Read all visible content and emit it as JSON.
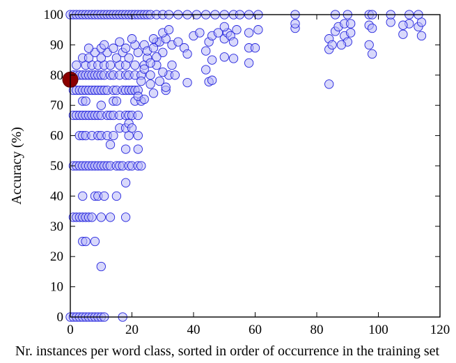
{
  "chart_data": {
    "type": "scatter",
    "xlabel": "Nr. instances per word class, sorted in order of occurrence in the training set",
    "ylabel": "Accuracy (%)",
    "xlim": [
      0,
      120
    ],
    "ylim": [
      0,
      100
    ],
    "x_ticks": [
      "0",
      "20",
      "40",
      "60",
      "80",
      "100",
      "120"
    ],
    "y_ticks": [
      "0",
      "10",
      "20",
      "30",
      "40",
      "50",
      "60",
      "70",
      "80",
      "90",
      "100"
    ],
    "grid": false,
    "legend": "none",
    "colors": {
      "point_fill": "#b8b8f8",
      "point_stroke": "#2222dd",
      "highlight_fill": "#8b0000",
      "highlight_stroke": "#5a0000"
    },
    "highlight_point": {
      "x": 0,
      "y": 78.5
    },
    "series": [
      {
        "values": [
          [
            0,
            0
          ],
          [
            1,
            0
          ],
          [
            2,
            0
          ],
          [
            3,
            0
          ],
          [
            4,
            0
          ],
          [
            5,
            0
          ],
          [
            6,
            0
          ],
          [
            7,
            0
          ],
          [
            8,
            0
          ],
          [
            9,
            0
          ],
          [
            10,
            0
          ],
          [
            11,
            0
          ],
          [
            17,
            0
          ],
          [
            1,
            33
          ],
          [
            2,
            33
          ],
          [
            3,
            33
          ],
          [
            4,
            33
          ],
          [
            5,
            33
          ],
          [
            6,
            33
          ],
          [
            7,
            33
          ],
          [
            10,
            33
          ],
          [
            13,
            33
          ],
          [
            18,
            33
          ],
          [
            1,
            50
          ],
          [
            2,
            50
          ],
          [
            3,
            50
          ],
          [
            4,
            50
          ],
          [
            5,
            50
          ],
          [
            6,
            50
          ],
          [
            7,
            50
          ],
          [
            8,
            50
          ],
          [
            9,
            50
          ],
          [
            10,
            50
          ],
          [
            11,
            50
          ],
          [
            12,
            50
          ],
          [
            13,
            50
          ],
          [
            15,
            50
          ],
          [
            16,
            50
          ],
          [
            17,
            50
          ],
          [
            19,
            50
          ],
          [
            20,
            50
          ],
          [
            22,
            50
          ],
          [
            23,
            50
          ],
          [
            1,
            66.7
          ],
          [
            2,
            66.7
          ],
          [
            3,
            66.7
          ],
          [
            4,
            66.7
          ],
          [
            5,
            66.7
          ],
          [
            6,
            66.7
          ],
          [
            7,
            66.7
          ],
          [
            8,
            66.7
          ],
          [
            9,
            66.7
          ],
          [
            10,
            66.7
          ],
          [
            12,
            66.7
          ],
          [
            13,
            66.7
          ],
          [
            14,
            66.7
          ],
          [
            16,
            66.7
          ],
          [
            18,
            66.7
          ],
          [
            19,
            66.7
          ],
          [
            20,
            66.7
          ],
          [
            22,
            66.7
          ],
          [
            1,
            75
          ],
          [
            2,
            75
          ],
          [
            3,
            75
          ],
          [
            4,
            75
          ],
          [
            5,
            75
          ],
          [
            6,
            75
          ],
          [
            7,
            75
          ],
          [
            8,
            75
          ],
          [
            9,
            75
          ],
          [
            10,
            75
          ],
          [
            11,
            75
          ],
          [
            12,
            75
          ],
          [
            14,
            75
          ],
          [
            15,
            75
          ],
          [
            17,
            75
          ],
          [
            18,
            75
          ],
          [
            19,
            75
          ],
          [
            20,
            75
          ],
          [
            21,
            75
          ],
          [
            22,
            75
          ],
          [
            31,
            75
          ],
          [
            1,
            80
          ],
          [
            2,
            80
          ],
          [
            3,
            80
          ],
          [
            4,
            80
          ],
          [
            5,
            80
          ],
          [
            6,
            80
          ],
          [
            7,
            80
          ],
          [
            8,
            80
          ],
          [
            9,
            80
          ],
          [
            10,
            80
          ],
          [
            11,
            80
          ],
          [
            13,
            80
          ],
          [
            14,
            80
          ],
          [
            16,
            80
          ],
          [
            18,
            80
          ],
          [
            19,
            80
          ],
          [
            21,
            80
          ],
          [
            23,
            80
          ],
          [
            26,
            80
          ],
          [
            32,
            80
          ],
          [
            34,
            80
          ],
          [
            4,
            25
          ],
          [
            5,
            25
          ],
          [
            8,
            25
          ],
          [
            4,
            40
          ],
          [
            8,
            40
          ],
          [
            9,
            40
          ],
          [
            11,
            40
          ],
          [
            15,
            40
          ],
          [
            3,
            60
          ],
          [
            4,
            60
          ],
          [
            5,
            60
          ],
          [
            7,
            60
          ],
          [
            9,
            60
          ],
          [
            10,
            60
          ],
          [
            12,
            60
          ],
          [
            14,
            60
          ],
          [
            19,
            60
          ],
          [
            22,
            60
          ],
          [
            4,
            71.4
          ],
          [
            5,
            71.4
          ],
          [
            10,
            70
          ],
          [
            14,
            71.4
          ],
          [
            15,
            71.4
          ],
          [
            21,
            71.4
          ],
          [
            23,
            71.4
          ],
          [
            2,
            83.3
          ],
          [
            5,
            83.3
          ],
          [
            7,
            83.3
          ],
          [
            9,
            83.3
          ],
          [
            11,
            83.3
          ],
          [
            13,
            83.3
          ],
          [
            16,
            83.3
          ],
          [
            18,
            83.3
          ],
          [
            21,
            83.3
          ],
          [
            24,
            83.3
          ],
          [
            28,
            83.3
          ],
          [
            33,
            83.3
          ],
          [
            4,
            85.7
          ],
          [
            6,
            85.7
          ],
          [
            8,
            87.5
          ],
          [
            10,
            85.7
          ],
          [
            12,
            87.5
          ],
          [
            15,
            85.7
          ],
          [
            17,
            87.5
          ],
          [
            19,
            85.7
          ],
          [
            22,
            87.5
          ],
          [
            25,
            85.7
          ],
          [
            30,
            87.5
          ],
          [
            6,
            88.9
          ],
          [
            10,
            88.9
          ],
          [
            14,
            88.9
          ],
          [
            18,
            88.9
          ],
          [
            21,
            90
          ],
          [
            24,
            90
          ],
          [
            28,
            90.9
          ],
          [
            11,
            90
          ],
          [
            16,
            91
          ],
          [
            20,
            92
          ],
          [
            13,
            57
          ],
          [
            16,
            62.5
          ],
          [
            18,
            62.5
          ],
          [
            19,
            64
          ],
          [
            20,
            62.5
          ],
          [
            18,
            55.5
          ],
          [
            22,
            55.5
          ],
          [
            18,
            44.4
          ],
          [
            10,
            16.7
          ],
          [
            22,
            73
          ],
          [
            24,
            72
          ],
          [
            26,
            77
          ],
          [
            27,
            74
          ],
          [
            29,
            78
          ],
          [
            30,
            81
          ],
          [
            31,
            76
          ],
          [
            24,
            82
          ],
          [
            26,
            84
          ],
          [
            28,
            86
          ],
          [
            23,
            78
          ],
          [
            25,
            88
          ],
          [
            27,
            89
          ],
          [
            29,
            91
          ],
          [
            31,
            92
          ],
          [
            33,
            90
          ],
          [
            35,
            91
          ],
          [
            37,
            89
          ],
          [
            38,
            87
          ],
          [
            40,
            93
          ],
          [
            42,
            94
          ],
          [
            38,
            77.5
          ],
          [
            44,
            81.8
          ],
          [
            45,
            77.8
          ],
          [
            46,
            78.3
          ],
          [
            44,
            88
          ],
          [
            45,
            91
          ],
          [
            46,
            93
          ],
          [
            48,
            94
          ],
          [
            50,
            92
          ],
          [
            51,
            94
          ],
          [
            52,
            93
          ],
          [
            53,
            91
          ],
          [
            54,
            95
          ],
          [
            50,
            86
          ],
          [
            53,
            85.5
          ],
          [
            58,
            84
          ],
          [
            58,
            89
          ],
          [
            60,
            89
          ],
          [
            58,
            94
          ],
          [
            61,
            95
          ],
          [
            27,
            92
          ],
          [
            30,
            94
          ],
          [
            32,
            95
          ],
          [
            46,
            85
          ],
          [
            50,
            96
          ],
          [
            73,
            95.5
          ],
          [
            73,
            97
          ],
          [
            84,
            77
          ],
          [
            84,
            88.5
          ],
          [
            84,
            92
          ],
          [
            85,
            90
          ],
          [
            86,
            94.5
          ],
          [
            87,
            96
          ],
          [
            89,
            93
          ],
          [
            90,
            91
          ],
          [
            91,
            94
          ],
          [
            88,
            90
          ],
          [
            89,
            97
          ],
          [
            91,
            97
          ],
          [
            97,
            90
          ],
          [
            98,
            87
          ],
          [
            97,
            96.5
          ],
          [
            98,
            95.5
          ],
          [
            104,
            97.5
          ],
          [
            108,
            93.5
          ],
          [
            110,
            97
          ],
          [
            113,
            96
          ],
          [
            114,
            93
          ],
          [
            114,
            97.5
          ],
          [
            108,
            96.5
          ],
          [
            0,
            100
          ],
          [
            1,
            100
          ],
          [
            2,
            100
          ],
          [
            3,
            100
          ],
          [
            4,
            100
          ],
          [
            5,
            100
          ],
          [
            6,
            100
          ],
          [
            7,
            100
          ],
          [
            8,
            100
          ],
          [
            9,
            100
          ],
          [
            10,
            100
          ],
          [
            11,
            100
          ],
          [
            12,
            100
          ],
          [
            13,
            100
          ],
          [
            14,
            100
          ],
          [
            15,
            100
          ],
          [
            16,
            100
          ],
          [
            17,
            100
          ],
          [
            18,
            100
          ],
          [
            19,
            100
          ],
          [
            20,
            100
          ],
          [
            21,
            100
          ],
          [
            22,
            100
          ],
          [
            23,
            100
          ],
          [
            24,
            100
          ],
          [
            25,
            100
          ],
          [
            26,
            100
          ],
          [
            28,
            100
          ],
          [
            30,
            100
          ],
          [
            32,
            100
          ],
          [
            35,
            100
          ],
          [
            38,
            100
          ],
          [
            41,
            100
          ],
          [
            44,
            100
          ],
          [
            47,
            100
          ],
          [
            50,
            100
          ],
          [
            53,
            100
          ],
          [
            55,
            100
          ],
          [
            58,
            100
          ],
          [
            61,
            100
          ],
          [
            73,
            100
          ],
          [
            86,
            100
          ],
          [
            90,
            100
          ],
          [
            97,
            100
          ],
          [
            98,
            100
          ],
          [
            104,
            100
          ],
          [
            110,
            100
          ],
          [
            113,
            100
          ]
        ]
      }
    ]
  }
}
